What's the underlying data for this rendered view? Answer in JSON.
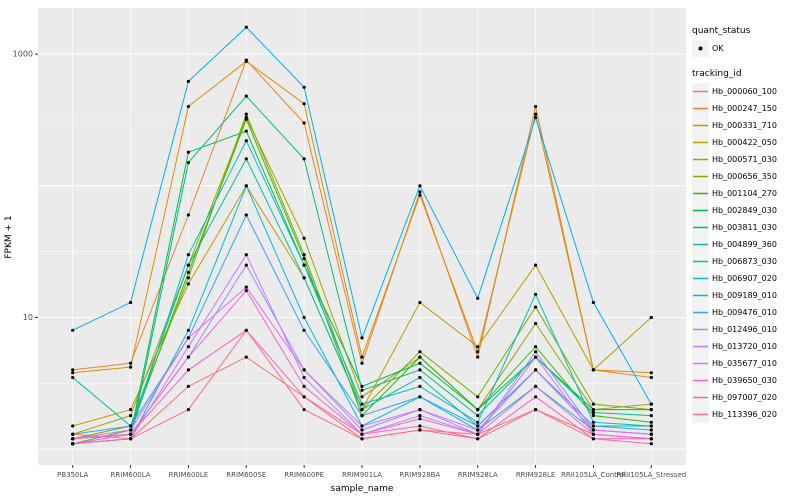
{
  "legend": {
    "quant_status_title": "quant_status",
    "quant_status_items": [
      {
        "label": "OK"
      }
    ],
    "tracking_id_title": "tracking_id"
  },
  "chart_data": {
    "type": "line",
    "title": "",
    "xlabel": "sample_name",
    "ylabel": "FPKM + 1",
    "y_scale": "log10",
    "legend_position": "right",
    "grid": true,
    "panel_background": "#EBEBEB",
    "point_color": "#000000",
    "y_tick_labels": [
      "10",
      "1000"
    ],
    "y_tick_values": [
      10,
      1000
    ],
    "y_major_grid": [
      1,
      10,
      100,
      1000
    ],
    "y_minor_grid": [
      3.162,
      31.62,
      316.2
    ],
    "ylim_log": [
      -0.12,
      3.35
    ],
    "categories": [
      "PB350LA",
      "RRIM600LA",
      "RRIM600LE",
      "RRIM600SE",
      "RRIM600PE",
      "RRIM901LA",
      "RRIM928BA",
      "RRIM928LA",
      "RRIM928LE",
      "RRII105LA_Control",
      "RRII105LA_Stressed"
    ],
    "quant_status": "OK",
    "series": [
      {
        "name": "Hb_000060_100",
        "color": "#F8766D",
        "values": [
          1.3,
          1.2,
          3,
          5,
          2.5,
          1.2,
          1.4,
          1.3,
          2,
          1.3,
          1.2
        ]
      },
      {
        "name": "Hb_000247_150",
        "color": "#EA8331",
        "values": [
          4,
          4.5,
          60,
          900,
          300,
          4.5,
          90,
          5,
          400,
          4,
          3.5
        ]
      },
      {
        "name": "Hb_000331_710",
        "color": "#D89000",
        "values": [
          3.8,
          4.2,
          400,
          880,
          420,
          5,
          85,
          5.5,
          350,
          4,
          3.8
        ]
      },
      {
        "name": "Hb_000422_050",
        "color": "#C09B00",
        "values": [
          1.5,
          2,
          18,
          100,
          20,
          2,
          13,
          6,
          25,
          4,
          10
        ]
      },
      {
        "name": "Hb_000571_030",
        "color": "#A3A500",
        "values": [
          1.3,
          1.8,
          25,
          330,
          40,
          2.5,
          5,
          2,
          9,
          2,
          2.2
        ]
      },
      {
        "name": "Hb_000656_350",
        "color": "#7CAE00",
        "values": [
          1.2,
          1.5,
          20,
          350,
          30,
          2,
          5.5,
          2.5,
          12,
          2.2,
          2
        ]
      },
      {
        "name": "Hb_001104_270",
        "color": "#39B600",
        "values": [
          1.1,
          1.4,
          22,
          320,
          28,
          1.8,
          5,
          2,
          6,
          1.8,
          1.6
        ]
      },
      {
        "name": "Hb_002849_030",
        "color": "#00BB4E",
        "values": [
          1.2,
          1.3,
          180,
          260,
          25,
          3,
          4.5,
          2,
          5,
          2,
          2
        ]
      },
      {
        "name": "Hb_003811_030",
        "color": "#00BF7D",
        "values": [
          1.1,
          1.2,
          150,
          480,
          160,
          2.8,
          4,
          1.8,
          5,
          1.9,
          1.8
        ]
      },
      {
        "name": "Hb_004899_360",
        "color": "#00C1A3",
        "values": [
          3.5,
          1.5,
          25,
          160,
          20,
          2,
          3.5,
          1.5,
          4,
          1.5,
          1.5
        ]
      },
      {
        "name": "Hb_006873_030",
        "color": "#00BFC4",
        "values": [
          1.2,
          1.3,
          30,
          220,
          25,
          2.2,
          3,
          1.6,
          15,
          1.6,
          1.5
        ]
      },
      {
        "name": "Hb_006907_020",
        "color": "#00BAE0",
        "values": [
          1.1,
          1.2,
          8,
          100,
          10,
          1.5,
          2.5,
          1.4,
          3,
          1.4,
          1.3
        ]
      },
      {
        "name": "Hb_009189_010",
        "color": "#00B0F6",
        "values": [
          8,
          13,
          620,
          1600,
          560,
          7,
          100,
          14,
          330,
          13,
          2.2
        ]
      },
      {
        "name": "Hb_009476_010",
        "color": "#35A2FF",
        "values": [
          1.3,
          1.5,
          7,
          60,
          8,
          1.8,
          2.5,
          1.5,
          4,
          1.5,
          1.4
        ]
      },
      {
        "name": "Hb_012496_010",
        "color": "#9590FF",
        "values": [
          1.2,
          1.3,
          5,
          25,
          4,
          1.4,
          2,
          1.3,
          5.5,
          1.4,
          1.3
        ]
      },
      {
        "name": "Hb_013720_010",
        "color": "#C77CFF",
        "values": [
          1.1,
          1.2,
          6,
          30,
          3.5,
          1.3,
          1.8,
          1.3,
          5,
          1.3,
          1.2
        ]
      },
      {
        "name": "Hb_035677_010",
        "color": "#E76BF3",
        "values": [
          1.2,
          1.4,
          7,
          17,
          4,
          1.5,
          2,
          1.4,
          4,
          1.4,
          1.3
        ]
      },
      {
        "name": "Hb_039650_030",
        "color": "#FA62DB",
        "values": [
          1.1,
          1.3,
          5,
          16,
          3,
          1.3,
          1.7,
          1.3,
          3,
          1.3,
          1.2
        ]
      },
      {
        "name": "Hb_097007_020",
        "color": "#FF62BC",
        "values": [
          1.2,
          1.3,
          4,
          8,
          2.5,
          1.3,
          1.5,
          1.2,
          2.5,
          1.2,
          1.2
        ]
      },
      {
        "name": "Hb_113396_020",
        "color": "#FF6A98",
        "values": [
          1.1,
          1.2,
          2,
          8,
          2,
          1.2,
          1.4,
          1.2,
          2,
          1.2,
          1.1
        ]
      }
    ]
  }
}
